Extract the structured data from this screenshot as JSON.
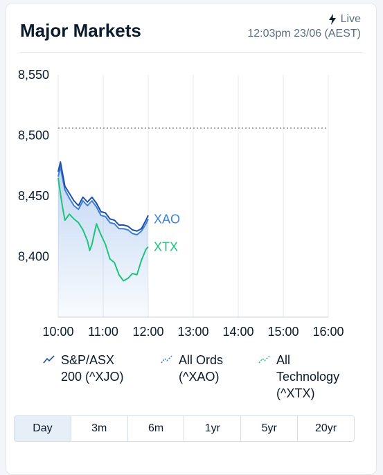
{
  "header": {
    "title": "Major Markets",
    "live_label": "Live",
    "live_icon": "lightning-icon",
    "timestamp": "12:03pm 23/06 (AEST)"
  },
  "chart_data": {
    "type": "line",
    "ylim": [
      8350,
      8550
    ],
    "y_ticks": [
      "8,550",
      "8,500",
      "8,450",
      "8,400"
    ],
    "y_tick_values": [
      8550,
      8500,
      8450,
      8400
    ],
    "x_ticks": [
      "10:00",
      "11:00",
      "12:00",
      "13:00",
      "14:00",
      "15:00",
      "16:00"
    ],
    "x_tick_values": [
      0,
      1,
      2,
      3,
      4,
      5,
      6
    ],
    "xlim": [
      0,
      6
    ],
    "reference_level": 8506,
    "grid": "vertical",
    "series": [
      {
        "name": "S&P/ASX 200 (^XJO)",
        "color": "#1e4fa6",
        "x": [
          0,
          0.05,
          0.1,
          0.15,
          0.25,
          0.35,
          0.45,
          0.55,
          0.65,
          0.75,
          0.85,
          0.95,
          1.05,
          1.15,
          1.25,
          1.35,
          1.45,
          1.55,
          1.65,
          1.75,
          1.85,
          1.95,
          2.0
        ],
        "values": [
          8470,
          8478,
          8468,
          8458,
          8452,
          8446,
          8442,
          8449,
          8445,
          8449,
          8444,
          8437,
          8436,
          8431,
          8430,
          8426,
          8426,
          8425,
          8422,
          8421,
          8423,
          8430,
          8434
        ]
      },
      {
        "name": "All Ords (^XAO)",
        "label": "XAO",
        "color": "#3b7fd9",
        "x": [
          0,
          0.05,
          0.1,
          0.15,
          0.25,
          0.35,
          0.45,
          0.55,
          0.65,
          0.75,
          0.85,
          0.95,
          1.05,
          1.15,
          1.25,
          1.35,
          1.45,
          1.55,
          1.65,
          1.75,
          1.85,
          1.95,
          2.0
        ],
        "values": [
          8466,
          8474,
          8464,
          8455,
          8448,
          8442,
          8439,
          8446,
          8442,
          8446,
          8441,
          8434,
          8433,
          8428,
          8427,
          8423,
          8423,
          8422,
          8419,
          8418,
          8421,
          8427,
          8431
        ]
      },
      {
        "name": "All Technology (^XTX)",
        "label": "XTX",
        "color": "#1fc27a",
        "x": [
          0,
          0.05,
          0.1,
          0.15,
          0.25,
          0.35,
          0.45,
          0.55,
          0.65,
          0.7,
          0.75,
          0.85,
          0.95,
          1.05,
          1.15,
          1.25,
          1.35,
          1.45,
          1.55,
          1.65,
          1.75,
          1.85,
          1.95,
          2.0
        ],
        "values": [
          8465,
          8452,
          8440,
          8430,
          8435,
          8431,
          8428,
          8422,
          8413,
          8405,
          8410,
          8427,
          8418,
          8410,
          8398,
          8395,
          8385,
          8380,
          8382,
          8386,
          8385,
          8397,
          8406,
          8408
        ]
      }
    ]
  },
  "legend": [
    {
      "text": "S&P/ASX\n200 (^XJO)",
      "color": "#1e4fa6"
    },
    {
      "text": "All Ords\n(^XAO)",
      "color": "#3b7fd9"
    },
    {
      "text": "All\nTechnology\n(^XTX)",
      "color": "#1fc27a"
    }
  ],
  "ranges": {
    "options": [
      "Day",
      "3m",
      "6m",
      "1yr",
      "5yr",
      "20yr"
    ],
    "selected": "Day"
  }
}
